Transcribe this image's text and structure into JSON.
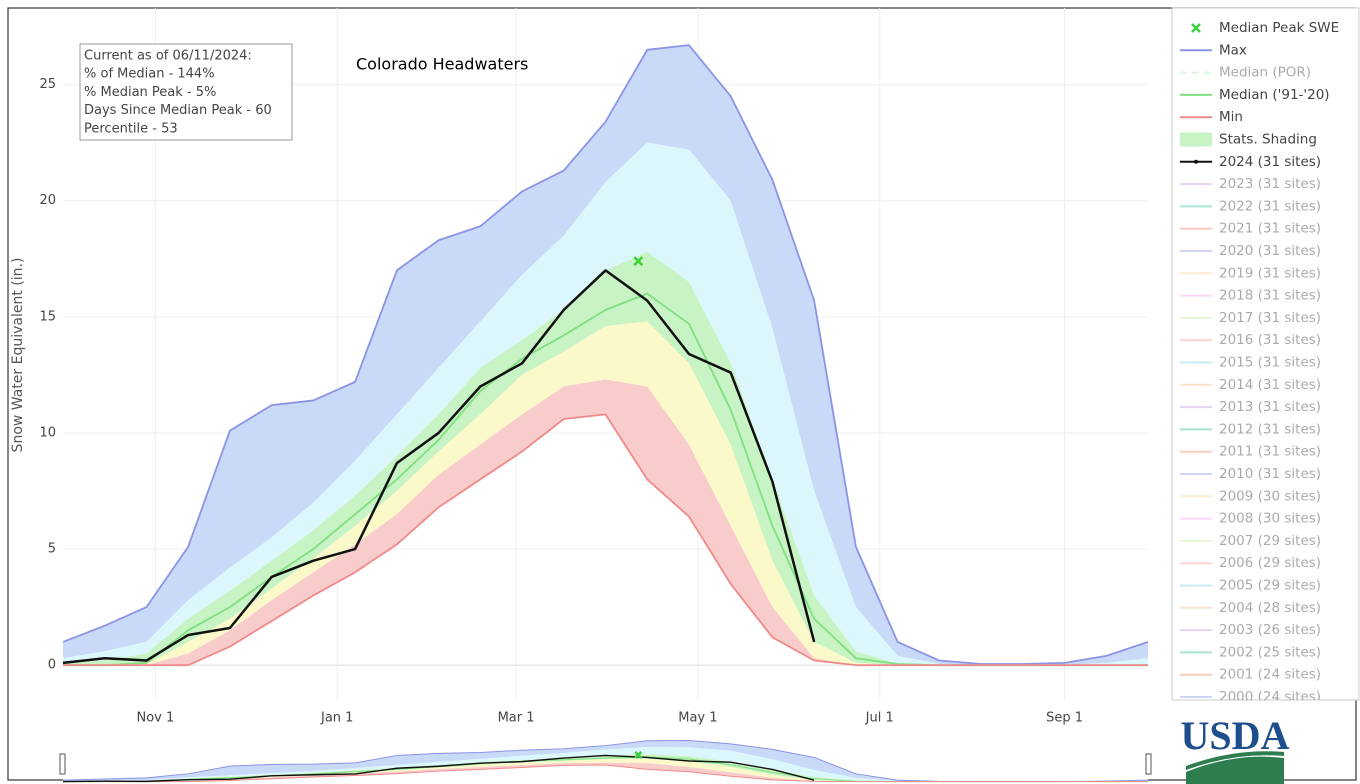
{
  "chart_data": {
    "type": "line",
    "title": "Colorado Headwaters",
    "y_label": "Snow Water Equivalent (in.)",
    "info": [
      "Current as of 06/11/2024:",
      "% of Median - 144%",
      "% Median Peak - 5%",
      "Days Since Median Peak - 60",
      "Percentile - 53"
    ],
    "logo": "USDA",
    "grid": true,
    "legend": "right",
    "xlim": [
      0,
      364
    ],
    "ylim": [
      -1.5,
      28.3
    ],
    "xticks": [
      {
        "value": 31,
        "label": "Nov 1"
      },
      {
        "value": 92,
        "label": "Jan 1"
      },
      {
        "value": 152,
        "label": "Mar 1"
      },
      {
        "value": 213,
        "label": "May 1"
      },
      {
        "value": 274,
        "label": "Jul 1"
      },
      {
        "value": 336,
        "label": "Sep 1"
      }
    ],
    "yticks": [
      0,
      5,
      10,
      15,
      20,
      25
    ],
    "x": [
      0,
      14,
      28,
      42,
      56,
      70,
      84,
      98,
      112,
      126,
      140,
      154,
      168,
      182,
      196,
      210,
      224,
      238,
      252,
      266,
      280,
      294,
      308,
      322,
      336,
      350,
      364
    ],
    "series": [
      {
        "name": "Median Peak SWE",
        "kind": "marker",
        "color": "#3ad13a",
        "x": [
          193
        ],
        "values": [
          17.4
        ]
      },
      {
        "name": "Max",
        "kind": "line",
        "color": "#8b93e6",
        "values": [
          1.0,
          1.7,
          2.5,
          5.1,
          10.1,
          11.2,
          11.4,
          12.2,
          17.0,
          18.3,
          18.9,
          20.4,
          21.3,
          23.4,
          26.5,
          26.7,
          24.5,
          20.9,
          15.7,
          5.1,
          1.0,
          0.2,
          0.05,
          0.05,
          0.1,
          0.4,
          1.0
        ]
      },
      {
        "name": "Median (POR)",
        "kind": "line",
        "color": "#a6eaa6",
        "dash": true,
        "visible": false
      },
      {
        "name": "Median ('91-'20)",
        "kind": "line",
        "color": "#7fe07f",
        "values": [
          0,
          0,
          0.1,
          1.5,
          2.5,
          3.8,
          5.0,
          6.5,
          8.0,
          9.7,
          11.8,
          13.2,
          14.2,
          15.3,
          16.0,
          14.7,
          11.0,
          6.0,
          2.0,
          0.3,
          0.05,
          0,
          0,
          0,
          0,
          0,
          0
        ]
      },
      {
        "name": "Min",
        "kind": "line",
        "color": "#f08a8a",
        "values": [
          0,
          0,
          0,
          0,
          0.8,
          1.9,
          3.0,
          4.0,
          5.2,
          6.8,
          8.0,
          9.2,
          10.6,
          10.8,
          8.0,
          6.4,
          3.5,
          1.2,
          0.2,
          0,
          0,
          0,
          0,
          0,
          0,
          0,
          0
        ]
      },
      {
        "name": "Stats. Shading",
        "kind": "shading",
        "color": "#c8f3c4",
        "above_color": "#c9d9f8",
        "bands": [
          {
            "color": "#f9cccc",
            "values": [
              0,
              0,
              0,
              0.5,
              1.5,
              2.8,
              4.0,
              5.2,
              6.5,
              8.2,
              9.5,
              10.8,
              12.0,
              12.3,
              12.0,
              9.5,
              6.0,
              2.5,
              0.3,
              0,
              0,
              0,
              0,
              0,
              0,
              0,
              0
            ]
          },
          {
            "color": "#fbf8c9",
            "values": [
              0,
              0,
              0.05,
              1.0,
              2.0,
              3.3,
              4.6,
              6.0,
              7.5,
              9.2,
              10.8,
              12.5,
              13.5,
              14.6,
              14.8,
              13.0,
              9.5,
              4.5,
              1.0,
              0.1,
              0,
              0,
              0,
              0,
              0,
              0,
              0
            ]
          },
          {
            "color": "#c8f3c4",
            "values": [
              0.1,
              0.2,
              0.5,
              2.0,
              3.2,
              4.5,
              5.8,
              7.3,
              9.0,
              10.8,
              12.8,
              14.0,
              15.3,
              17.0,
              17.8,
              16.5,
              13.0,
              8.0,
              3.0,
              0.6,
              0.05,
              0,
              0,
              0,
              0,
              0,
              0
            ]
          },
          {
            "color": "#dcf7fb",
            "values": [
              0.3,
              0.6,
              1.0,
              2.8,
              4.2,
              5.5,
              7.0,
              8.8,
              10.8,
              12.8,
              14.8,
              16.8,
              18.5,
              20.8,
              22.5,
              22.2,
              20.0,
              14.5,
              7.5,
              2.5,
              0.4,
              0.05,
              0,
              0,
              0,
              0.1,
              0.3
            ]
          }
        ]
      },
      {
        "name": "2024 (31 sites)",
        "kind": "line",
        "color": "#111111",
        "values": [
          0.1,
          0.3,
          0.2,
          1.3,
          1.6,
          3.8,
          4.5,
          5.0,
          8.7,
          10.0,
          12.0,
          13.0,
          15.3,
          17.0,
          15.7,
          13.4,
          12.6,
          7.9,
          1.0,
          null,
          null,
          null,
          null,
          null,
          null,
          null,
          null
        ]
      },
      {
        "name": "2023 (31 sites)",
        "kind": "line",
        "color": "#c9a0f0",
        "visible": false
      },
      {
        "name": "2022 (31 sites)",
        "kind": "line",
        "color": "#40c8a8",
        "visible": false
      },
      {
        "name": "2021 (31 sites)",
        "kind": "line",
        "color": "#f08a7a",
        "visible": false
      },
      {
        "name": "2020 (31 sites)",
        "kind": "line",
        "color": "#9aa0e8",
        "visible": false
      },
      {
        "name": "2019 (31 sites)",
        "kind": "line",
        "color": "#f8d890",
        "visible": false
      },
      {
        "name": "2018 (31 sites)",
        "kind": "line",
        "color": "#f4a6f0",
        "visible": false
      },
      {
        "name": "2017 (31 sites)",
        "kind": "line",
        "color": "#c8e8a0",
        "visible": false
      },
      {
        "name": "2016 (31 sites)",
        "kind": "line",
        "color": "#f4a0a0",
        "visible": false
      },
      {
        "name": "2015 (31 sites)",
        "kind": "line",
        "color": "#80d8f0",
        "visible": false
      },
      {
        "name": "2014 (31 sites)",
        "kind": "line",
        "color": "#f8c090",
        "visible": false
      },
      {
        "name": "2013 (31 sites)",
        "kind": "line",
        "color": "#c0a0e8",
        "visible": false
      },
      {
        "name": "2012 (31 sites)",
        "kind": "line",
        "color": "#40c0a0",
        "visible": false
      },
      {
        "name": "2011 (31 sites)",
        "kind": "line",
        "color": "#f0906a",
        "visible": false
      },
      {
        "name": "2010 (31 sites)",
        "kind": "line",
        "color": "#9aa0e8",
        "visible": false
      },
      {
        "name": "2009 (30 sites)",
        "kind": "line",
        "color": "#f8d890",
        "visible": false
      },
      {
        "name": "2008 (30 sites)",
        "kind": "line",
        "color": "#f4a6f0",
        "visible": false
      },
      {
        "name": "2007 (29 sites)",
        "kind": "line",
        "color": "#c8e8a0",
        "visible": false
      },
      {
        "name": "2006 (29 sites)",
        "kind": "line",
        "color": "#f4a0a0",
        "visible": false
      },
      {
        "name": "2005 (29 sites)",
        "kind": "line",
        "color": "#80d8f0",
        "visible": false
      },
      {
        "name": "2004 (28 sites)",
        "kind": "line",
        "color": "#f8c090",
        "visible": false
      },
      {
        "name": "2003 (26 sites)",
        "kind": "line",
        "color": "#c0a0e8",
        "visible": false
      },
      {
        "name": "2002 (25 sites)",
        "kind": "line",
        "color": "#40c0a0",
        "visible": false
      },
      {
        "name": "2001 (24 sites)",
        "kind": "line",
        "color": "#f0906a",
        "visible": false
      },
      {
        "name": "2000 (24 sites)",
        "kind": "line",
        "color": "#9aa0e8",
        "visible": false
      }
    ]
  }
}
